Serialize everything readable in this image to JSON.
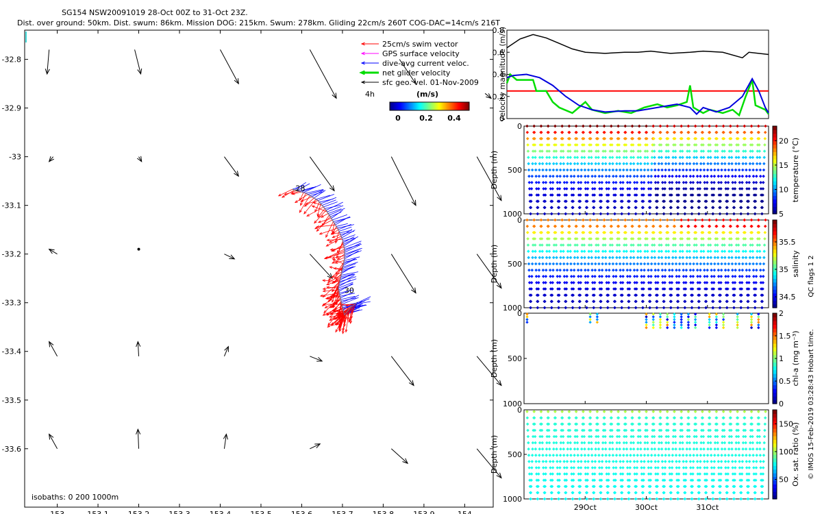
{
  "title": {
    "line1": "SG154 NSW20091019 28-Oct 00Z to 31-Oct 23Z.",
    "line2": "Dist. over ground: 50km. Dist. swum: 86km. Mission DOG: 215km. Swum: 278km. Gliding 22cm/s 260T COG-DAC=14cm/s 216T"
  },
  "map": {
    "x_ticks": [
      "153",
      "153.1",
      "153.2",
      "153.3",
      "153.4",
      "153.5",
      "153.6",
      "153.7",
      "153.8",
      "153.9",
      "154"
    ],
    "y_ticks": [
      "-32.8",
      "-32.9",
      "-33",
      "-33.1",
      "-33.2",
      "-33.3",
      "-33.4",
      "-33.5",
      "-33.6"
    ],
    "xlim": [
      152.92,
      154.07
    ],
    "ylim": [
      -33.72,
      -32.74
    ],
    "legend": [
      {
        "label": "25cm/s swim vector",
        "color": "#ff0000"
      },
      {
        "label": "GPS surface velocity",
        "color": "#ff00ff"
      },
      {
        "label": "dive-avg current veloc.",
        "color": "#0000ff"
      },
      {
        "label": "net glider velocity",
        "color": "#00dd00"
      },
      {
        "label": "sfc geo. vel. 01-Nov-2009",
        "color": "#000000"
      }
    ],
    "time_marker": "4h",
    "colorbar_label": "(m/s)",
    "colorbar_ticks": [
      "0",
      "0.2",
      "0.4"
    ],
    "day_labels": [
      {
        "text": "28",
        "lon": 153.585,
        "lat": -33.07
      },
      {
        "text": "30",
        "lon": 153.705,
        "lat": -33.28
      }
    ],
    "isobaths": "isobaths: 0   200  1000m",
    "track": [
      [
        153.577,
        -33.067
      ],
      [
        153.61,
        -33.075
      ],
      [
        153.64,
        -33.09
      ],
      [
        153.66,
        -33.11
      ],
      [
        153.675,
        -33.13
      ],
      [
        153.69,
        -33.15
      ],
      [
        153.7,
        -33.17
      ],
      [
        153.705,
        -33.19
      ],
      [
        153.705,
        -33.21
      ],
      [
        153.7,
        -33.23
      ],
      [
        153.695,
        -33.25
      ],
      [
        153.69,
        -33.27
      ],
      [
        153.695,
        -33.29
      ],
      [
        153.7,
        -33.31
      ],
      [
        153.705,
        -33.325
      ],
      [
        153.71,
        -33.32
      ],
      [
        153.72,
        -33.31
      ],
      [
        153.735,
        -33.3
      ]
    ],
    "geo_vectors": [
      [
        152.98,
        -32.78,
        152.975,
        -32.83
      ],
      [
        153.19,
        -32.78,
        153.205,
        -32.83
      ],
      [
        153.4,
        -32.78,
        153.445,
        -32.85
      ],
      [
        153.62,
        -32.78,
        153.685,
        -32.88
      ],
      [
        153.84,
        -32.8,
        153.88,
        -32.85
      ],
      [
        154.05,
        -32.87,
        154.065,
        -32.88
      ],
      [
        152.99,
        -33.0,
        152.98,
        -33.01
      ],
      [
        153.2,
        -33.0,
        153.207,
        -33.01
      ],
      [
        153.41,
        -33.0,
        153.445,
        -33.04
      ],
      [
        153.62,
        -33.0,
        153.68,
        -33.07
      ],
      [
        153.82,
        -33.0,
        153.88,
        -33.1
      ],
      [
        154.03,
        -33.0,
        154.09,
        -33.09
      ],
      [
        153.0,
        -33.2,
        152.98,
        -33.19
      ],
      [
        153.2,
        -33.19,
        153.2,
        -33.19
      ],
      [
        153.41,
        -33.2,
        153.435,
        -33.21
      ],
      [
        153.62,
        -33.2,
        153.675,
        -33.25
      ],
      [
        153.82,
        -33.2,
        153.88,
        -33.28
      ],
      [
        154.03,
        -33.2,
        154.09,
        -33.27
      ],
      [
        153.0,
        -33.41,
        152.98,
        -33.38
      ],
      [
        153.2,
        -33.41,
        153.198,
        -33.38
      ],
      [
        153.41,
        -33.41,
        153.42,
        -33.39
      ],
      [
        153.62,
        -33.41,
        153.65,
        -33.42
      ],
      [
        153.82,
        -33.41,
        153.875,
        -33.47
      ],
      [
        154.03,
        -33.41,
        154.09,
        -33.47
      ],
      [
        153.0,
        -33.6,
        152.98,
        -33.57
      ],
      [
        153.2,
        -33.6,
        153.198,
        -33.56
      ],
      [
        153.41,
        -33.6,
        153.415,
        -33.57
      ],
      [
        153.62,
        -33.6,
        153.645,
        -33.59
      ],
      [
        153.82,
        -33.6,
        153.86,
        -33.63
      ],
      [
        154.03,
        -33.6,
        154.09,
        -33.66
      ]
    ]
  },
  "velocity_panel": {
    "ylabel": "velocity magnitude (m/s)",
    "y_ticks": [
      "0",
      "0.2",
      "0.4",
      "0.6",
      "0.8"
    ],
    "ylim": [
      0,
      0.8
    ],
    "xlim": [
      28.0,
      32.0
    ],
    "swim_speed_ref": 0.25,
    "speed_through_water": [
      [
        28.0,
        0.64
      ],
      [
        28.2,
        0.72
      ],
      [
        28.4,
        0.76
      ],
      [
        28.6,
        0.73
      ],
      [
        28.8,
        0.68
      ],
      [
        29.0,
        0.63
      ],
      [
        29.2,
        0.6
      ],
      [
        29.5,
        0.59
      ],
      [
        29.8,
        0.6
      ],
      [
        30.0,
        0.6
      ],
      [
        30.2,
        0.61
      ],
      [
        30.5,
        0.59
      ],
      [
        30.8,
        0.6
      ],
      [
        31.0,
        0.61
      ],
      [
        31.3,
        0.6
      ],
      [
        31.6,
        0.55
      ],
      [
        31.7,
        0.6
      ],
      [
        32.0,
        0.58
      ]
    ],
    "dive_avg_current": [
      [
        28.0,
        0.37
      ],
      [
        28.1,
        0.39
      ],
      [
        28.3,
        0.4
      ],
      [
        28.5,
        0.37
      ],
      [
        28.7,
        0.3
      ],
      [
        28.9,
        0.2
      ],
      [
        29.1,
        0.12
      ],
      [
        29.3,
        0.08
      ],
      [
        29.5,
        0.06
      ],
      [
        29.8,
        0.07
      ],
      [
        30.0,
        0.07
      ],
      [
        30.3,
        0.1
      ],
      [
        30.6,
        0.13
      ],
      [
        30.8,
        0.1
      ],
      [
        30.9,
        0.04
      ],
      [
        31.0,
        0.1
      ],
      [
        31.2,
        0.06
      ],
      [
        31.4,
        0.1
      ],
      [
        31.6,
        0.2
      ],
      [
        31.75,
        0.36
      ],
      [
        31.85,
        0.25
      ],
      [
        31.95,
        0.1
      ],
      [
        32.0,
        0.05
      ]
    ],
    "net_glider_velocity": [
      [
        28.0,
        0.32
      ],
      [
        28.05,
        0.4
      ],
      [
        28.15,
        0.35
      ],
      [
        28.4,
        0.35
      ],
      [
        28.45,
        0.25
      ],
      [
        28.6,
        0.25
      ],
      [
        28.7,
        0.15
      ],
      [
        28.8,
        0.1
      ],
      [
        29.0,
        0.05
      ],
      [
        29.1,
        0.1
      ],
      [
        29.2,
        0.15
      ],
      [
        29.3,
        0.08
      ],
      [
        29.5,
        0.05
      ],
      [
        29.7,
        0.07
      ],
      [
        29.9,
        0.05
      ],
      [
        30.1,
        0.1
      ],
      [
        30.3,
        0.13
      ],
      [
        30.45,
        0.1
      ],
      [
        30.6,
        0.12
      ],
      [
        30.75,
        0.15
      ],
      [
        30.8,
        0.3
      ],
      [
        30.85,
        0.1
      ],
      [
        31.0,
        0.05
      ],
      [
        31.1,
        0.08
      ],
      [
        31.3,
        0.05
      ],
      [
        31.45,
        0.08
      ],
      [
        31.55,
        0.03
      ],
      [
        31.65,
        0.2
      ],
      [
        31.75,
        0.35
      ],
      [
        31.8,
        0.12
      ],
      [
        31.95,
        0.08
      ],
      [
        32.0,
        0.04
      ]
    ]
  },
  "profile_panels": [
    {
      "name": "temperature",
      "label": "temperature (°C)",
      "ticks": [
        "5",
        "10",
        "15",
        "20"
      ],
      "range": [
        5,
        23
      ],
      "min_depth": 0
    },
    {
      "name": "salinity",
      "label": "salinity",
      "ticks": [
        "34.5",
        "35",
        "35.5"
      ],
      "range": [
        34.3,
        35.9
      ],
      "min_depth": 0
    },
    {
      "name": "chl-a",
      "label": "chl-a (mg m⁻³)",
      "ticks": [
        "0",
        "0.5",
        "1",
        "1.5",
        "2"
      ],
      "range": [
        0,
        2
      ],
      "min_depth": 0
    },
    {
      "name": "oxygen",
      "label": "Ox. sat. ratio (%)",
      "ticks": [
        "50",
        "100",
        "150"
      ],
      "range": [
        15,
        175
      ],
      "min_depth": 20
    }
  ],
  "depth_axis": {
    "label": "Depth (m)",
    "ticks": [
      "0",
      "500",
      "1000"
    ],
    "max_depth": 1000
  },
  "time_axis": {
    "xlim": [
      28.0,
      32.0
    ],
    "ticks": [
      {
        "label": "29Oct",
        "day": 29
      },
      {
        "label": "30Oct",
        "day": 30
      },
      {
        "label": "31Oct",
        "day": 31
      }
    ]
  },
  "dives": {
    "count": 34,
    "start_day": 28.05,
    "end_day": 31.95
  },
  "chl_dive_indices": [
    0,
    9,
    10,
    17,
    18,
    19,
    20,
    21,
    22,
    23,
    24,
    26,
    27,
    28,
    30,
    32,
    33
  ],
  "footer": {
    "qc_flags": "QC flags  1  2",
    "credit": "© IMOS 15-Feb-2019 03:28:43 Hobart time."
  },
  "colors": {
    "jet": [
      "#00008f",
      "#0000ff",
      "#007fff",
      "#00ffff",
      "#7fff7f",
      "#ffff00",
      "#ff7f00",
      "#ff0000",
      "#7f0000"
    ]
  }
}
